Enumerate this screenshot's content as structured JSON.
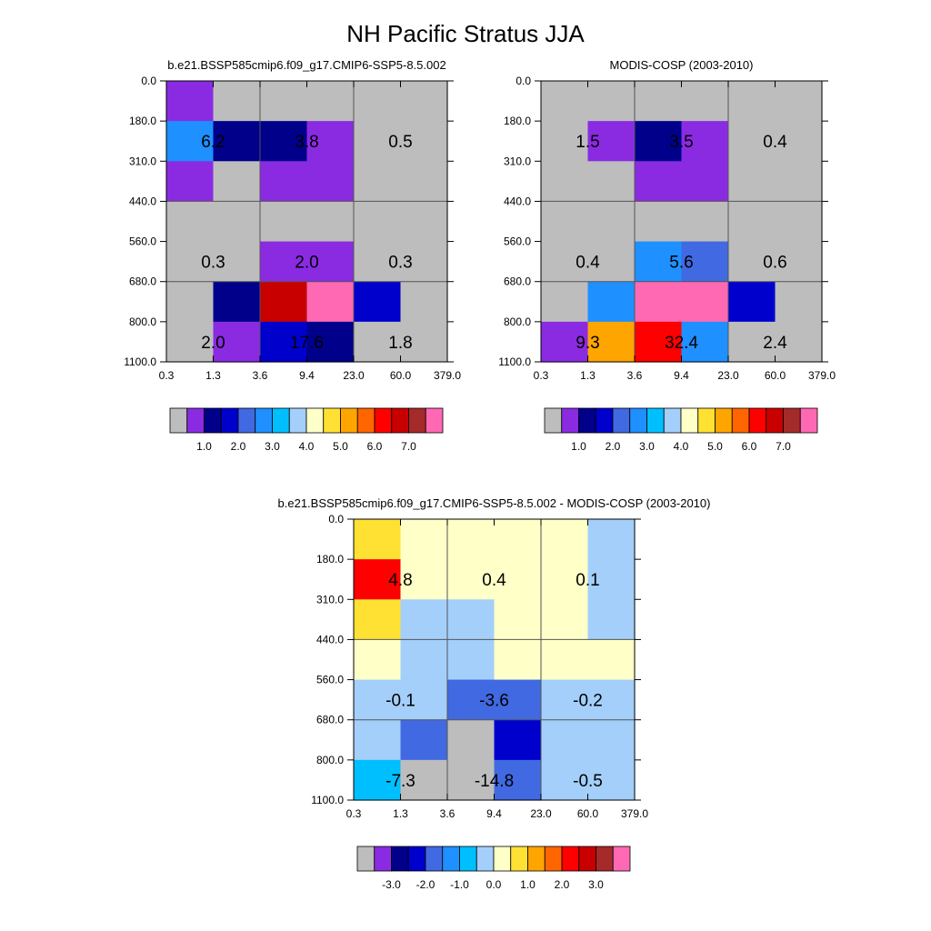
{
  "figure": {
    "title": "NH Pacific Stratus JJA",
    "colors": [
      "#bdbdbd",
      "#8a2be2",
      "#00008b",
      "#0000cd",
      "#4169e1",
      "#1e90ff",
      "#00bfff",
      "#a3cffa",
      "#ffffc8",
      "#ffe133",
      "#ffa500",
      "#ff6600",
      "#ff0000",
      "#c80000",
      "#a52a2a",
      "#ff69b4"
    ]
  },
  "chart_data": [
    {
      "type": "heatmap",
      "title": "b.e21.BSSP585cmip6.f09_g17.CMIP6-SSP5-8.5.002",
      "x_ticks": [
        "0.3",
        "1.3",
        "3.6",
        "9.4",
        "23.0",
        "60.0",
        "379.0"
      ],
      "y_ticks": [
        "0.0",
        "180.0",
        "310.0",
        "440.0",
        "560.0",
        "680.0",
        "800.0",
        "1100.0"
      ],
      "cells": [
        [
          1,
          0,
          0,
          0,
          0,
          0
        ],
        [
          5,
          2,
          2,
          1,
          0,
          0
        ],
        [
          1,
          0,
          1,
          1,
          0,
          0
        ],
        [
          0,
          0,
          0,
          0,
          0,
          0
        ],
        [
          0,
          0,
          1,
          1,
          0,
          0
        ],
        [
          0,
          2,
          13,
          15,
          3,
          0
        ],
        [
          0,
          1,
          3,
          2,
          0,
          0
        ]
      ],
      "annotations": [
        {
          "col": 1,
          "row": 1,
          "text": "6.2"
        },
        {
          "col": 3,
          "row": 1,
          "text": "3.8"
        },
        {
          "col": 5,
          "row": 1,
          "text": "0.5"
        },
        {
          "col": 1,
          "row": 4,
          "text": "0.3"
        },
        {
          "col": 3,
          "row": 4,
          "text": "2.0"
        },
        {
          "col": 5,
          "row": 4,
          "text": "0.3"
        },
        {
          "col": 1,
          "row": 6,
          "text": "2.0"
        },
        {
          "col": 3,
          "row": 6,
          "text": "17.6"
        },
        {
          "col": 5,
          "row": 6,
          "text": "1.8"
        }
      ],
      "colorbar": {
        "labels": [
          "1.0",
          "2.0",
          "3.0",
          "4.0",
          "5.0",
          "6.0",
          "7.0"
        ]
      }
    },
    {
      "type": "heatmap",
      "title": "MODIS-COSP (2003-2010)",
      "x_ticks": [
        "0.3",
        "1.3",
        "3.6",
        "9.4",
        "23.0",
        "60.0",
        "379.0"
      ],
      "y_ticks": [
        "0.0",
        "180.0",
        "310.0",
        "440.0",
        "560.0",
        "680.0",
        "800.0",
        "1100.0"
      ],
      "cells": [
        [
          0,
          0,
          0,
          0,
          0,
          0
        ],
        [
          0,
          1,
          2,
          1,
          0,
          0
        ],
        [
          0,
          0,
          1,
          1,
          0,
          0
        ],
        [
          0,
          0,
          0,
          0,
          0,
          0
        ],
        [
          0,
          0,
          5,
          4,
          0,
          0
        ],
        [
          0,
          5,
          15,
          15,
          3,
          0
        ],
        [
          1,
          10,
          12,
          5,
          0,
          0
        ]
      ],
      "annotations": [
        {
          "col": 1,
          "row": 1,
          "text": "1.5"
        },
        {
          "col": 3,
          "row": 1,
          "text": "3.5"
        },
        {
          "col": 5,
          "row": 1,
          "text": "0.4"
        },
        {
          "col": 1,
          "row": 4,
          "text": "0.4"
        },
        {
          "col": 3,
          "row": 4,
          "text": "5.6"
        },
        {
          "col": 5,
          "row": 4,
          "text": "0.6"
        },
        {
          "col": 1,
          "row": 6,
          "text": "9.3"
        },
        {
          "col": 3,
          "row": 6,
          "text": "32.4"
        },
        {
          "col": 5,
          "row": 6,
          "text": "2.4"
        }
      ],
      "colorbar": {
        "labels": [
          "1.0",
          "2.0",
          "3.0",
          "4.0",
          "5.0",
          "6.0",
          "7.0"
        ]
      }
    },
    {
      "type": "heatmap",
      "title": "b.e21.BSSP585cmip6.f09_g17.CMIP6-SSP5-8.5.002 - MODIS-COSP (2003-2010)",
      "x_ticks": [
        "0.3",
        "1.3",
        "3.6",
        "9.4",
        "23.0",
        "60.0",
        "379.0"
      ],
      "y_ticks": [
        "0.0",
        "180.0",
        "310.0",
        "440.0",
        "560.0",
        "680.0",
        "800.0",
        "1100.0"
      ],
      "cells": [
        [
          9,
          8,
          8,
          8,
          8,
          7
        ],
        [
          12,
          8,
          8,
          8,
          8,
          7
        ],
        [
          9,
          7,
          7,
          8,
          8,
          7
        ],
        [
          8,
          7,
          7,
          8,
          8,
          8
        ],
        [
          7,
          7,
          4,
          4,
          7,
          7
        ],
        [
          7,
          4,
          0,
          3,
          7,
          7
        ],
        [
          6,
          0,
          0,
          4,
          7,
          7
        ]
      ],
      "annotations": [
        {
          "col": 1,
          "row": 1,
          "text": "4.8"
        },
        {
          "col": 3,
          "row": 1,
          "text": "0.4"
        },
        {
          "col": 5,
          "row": 1,
          "text": "0.1"
        },
        {
          "col": 1,
          "row": 4,
          "text": "-0.1"
        },
        {
          "col": 3,
          "row": 4,
          "text": "-3.6"
        },
        {
          "col": 5,
          "row": 4,
          "text": "-0.2"
        },
        {
          "col": 1,
          "row": 6,
          "text": "-7.3"
        },
        {
          "col": 3,
          "row": 6,
          "text": "-14.8"
        },
        {
          "col": 5,
          "row": 6,
          "text": "-0.5"
        }
      ],
      "colorbar": {
        "labels": [
          "-3.0",
          "-2.0",
          "-1.0",
          "0.0",
          "1.0",
          "2.0",
          "3.0"
        ]
      }
    }
  ]
}
